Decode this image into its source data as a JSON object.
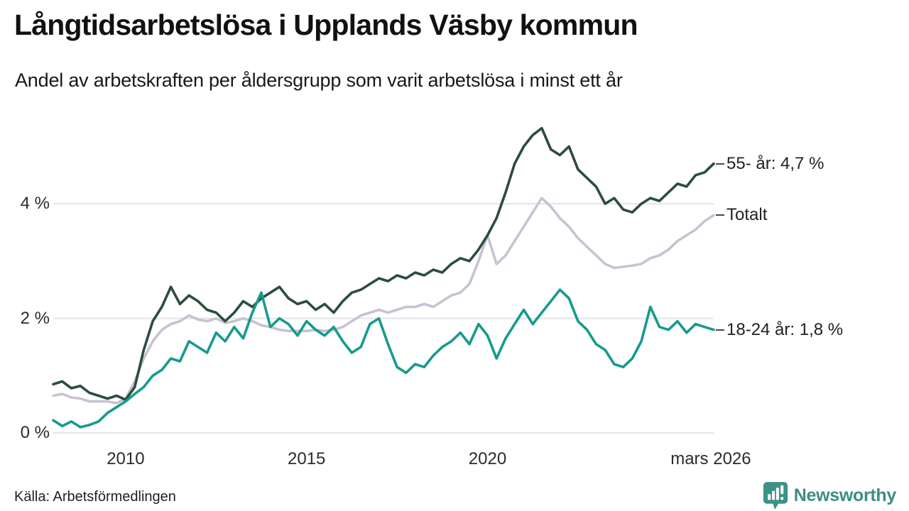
{
  "header": {
    "title": "Långtidsarbetslösa i Upplands Väsby kommun",
    "subtitle": "Andel av arbetskraften per åldersgrupp som varit arbetslösa i minst ett år"
  },
  "footer": {
    "source": "Källa: Arbetsförmedlingen",
    "brand": "Newsworthy"
  },
  "colors": {
    "background": "#ffffff",
    "gridline": "#e3e3e8",
    "text": "#111111",
    "tick_text": "#2b2b2b",
    "annotation_text": "#222222",
    "series_55": "#2c4c41",
    "series_total": "#c6c3d2",
    "series_18_24": "#169b8d",
    "brand_teal": "#3d8c83"
  },
  "chart_data": {
    "type": "line",
    "title": "Långtidsarbetslösa i Upplands Väsby kommun",
    "subtitle": "Andel av arbetskraften per åldersgrupp som varit arbetslösa i minst ett år",
    "xlabel": "",
    "ylabel": "",
    "x_unit": "year (quarterly samples, Jan 2008 – Mar 2026)",
    "xlim": [
      2008,
      2026.25
    ],
    "ylim": [
      0,
      5.6
    ],
    "grid": "horizontal",
    "legend_position": "right-end-annotations",
    "yticks": [
      {
        "value": 0,
        "label": "0 %"
      },
      {
        "value": 2,
        "label": "2 %"
      },
      {
        "value": 4,
        "label": "4 %"
      }
    ],
    "xticks": [
      {
        "value": 2010,
        "label": "2010"
      },
      {
        "value": 2015,
        "label": "2015"
      },
      {
        "value": 2020,
        "label": "2020"
      },
      {
        "value": 2026.17,
        "label": "mars 2026"
      }
    ],
    "x": [
      2008.0,
      2008.25,
      2008.5,
      2008.75,
      2009.0,
      2009.25,
      2009.5,
      2009.75,
      2010.0,
      2010.25,
      2010.5,
      2010.75,
      2011.0,
      2011.25,
      2011.5,
      2011.75,
      2012.0,
      2012.25,
      2012.5,
      2012.75,
      2013.0,
      2013.25,
      2013.5,
      2013.75,
      2014.0,
      2014.25,
      2014.5,
      2014.75,
      2015.0,
      2015.25,
      2015.5,
      2015.75,
      2016.0,
      2016.25,
      2016.5,
      2016.75,
      2017.0,
      2017.25,
      2017.5,
      2017.75,
      2018.0,
      2018.25,
      2018.5,
      2018.75,
      2019.0,
      2019.25,
      2019.5,
      2019.75,
      2020.0,
      2020.25,
      2020.5,
      2020.75,
      2021.0,
      2021.25,
      2021.5,
      2021.75,
      2022.0,
      2022.25,
      2022.5,
      2022.75,
      2023.0,
      2023.25,
      2023.5,
      2023.75,
      2024.0,
      2024.25,
      2024.5,
      2024.75,
      2025.0,
      2025.25,
      2025.5,
      2025.75,
      2026.0,
      2026.25
    ],
    "series": [
      {
        "name": "55- år",
        "annotation": "55- år: 4,7 %",
        "end_value": 4.7,
        "color": "#2c4c41",
        "values": [
          0.85,
          0.9,
          0.78,
          0.82,
          0.7,
          0.65,
          0.6,
          0.65,
          0.58,
          0.8,
          1.45,
          1.95,
          2.2,
          2.55,
          2.25,
          2.4,
          2.3,
          2.15,
          2.1,
          1.95,
          2.1,
          2.3,
          2.2,
          2.35,
          2.45,
          2.55,
          2.35,
          2.25,
          2.3,
          2.15,
          2.25,
          2.1,
          2.3,
          2.45,
          2.5,
          2.6,
          2.7,
          2.65,
          2.75,
          2.7,
          2.8,
          2.75,
          2.85,
          2.8,
          2.95,
          3.05,
          3.0,
          3.2,
          3.45,
          3.75,
          4.2,
          4.7,
          5.0,
          5.2,
          5.32,
          4.95,
          4.85,
          5.0,
          4.6,
          4.45,
          4.3,
          4.0,
          4.1,
          3.9,
          3.85,
          4.0,
          4.1,
          4.05,
          4.2,
          4.35,
          4.3,
          4.5,
          4.55,
          4.7
        ]
      },
      {
        "name": "Totalt",
        "annotation": "Totalt",
        "end_value": 3.8,
        "color": "#c6c3d2",
        "values": [
          0.65,
          0.68,
          0.62,
          0.6,
          0.55,
          0.55,
          0.55,
          0.52,
          0.6,
          0.9,
          1.3,
          1.6,
          1.8,
          1.9,
          1.95,
          2.05,
          1.98,
          1.95,
          2.0,
          1.92,
          1.95,
          2.0,
          1.95,
          1.88,
          1.85,
          1.8,
          1.78,
          1.78,
          1.78,
          1.8,
          1.78,
          1.8,
          1.85,
          1.95,
          2.05,
          2.1,
          2.15,
          2.1,
          2.15,
          2.2,
          2.2,
          2.25,
          2.2,
          2.3,
          2.4,
          2.45,
          2.6,
          3.0,
          3.45,
          2.95,
          3.1,
          3.35,
          3.6,
          3.85,
          4.1,
          3.95,
          3.75,
          3.6,
          3.4,
          3.25,
          3.1,
          2.95,
          2.88,
          2.9,
          2.92,
          2.95,
          3.05,
          3.1,
          3.2,
          3.35,
          3.45,
          3.55,
          3.7,
          3.8
        ]
      },
      {
        "name": "18-24 år",
        "annotation": "18-24 år: 1,8 %",
        "end_value": 1.8,
        "color": "#169b8d",
        "values": [
          0.22,
          0.12,
          0.2,
          0.1,
          0.14,
          0.2,
          0.35,
          0.45,
          0.55,
          0.68,
          0.8,
          1.0,
          1.1,
          1.3,
          1.25,
          1.6,
          1.5,
          1.4,
          1.75,
          1.6,
          1.85,
          1.65,
          2.1,
          2.45,
          1.85,
          2.0,
          1.9,
          1.7,
          1.95,
          1.8,
          1.7,
          1.85,
          1.6,
          1.4,
          1.5,
          1.9,
          2.0,
          1.55,
          1.15,
          1.05,
          1.2,
          1.15,
          1.35,
          1.5,
          1.6,
          1.75,
          1.55,
          1.9,
          1.7,
          1.3,
          1.65,
          1.9,
          2.15,
          1.9,
          2.1,
          2.3,
          2.5,
          2.35,
          1.95,
          1.8,
          1.55,
          1.45,
          1.2,
          1.15,
          1.3,
          1.6,
          2.2,
          1.85,
          1.8,
          1.95,
          1.75,
          1.9,
          1.85,
          1.8
        ]
      }
    ]
  }
}
